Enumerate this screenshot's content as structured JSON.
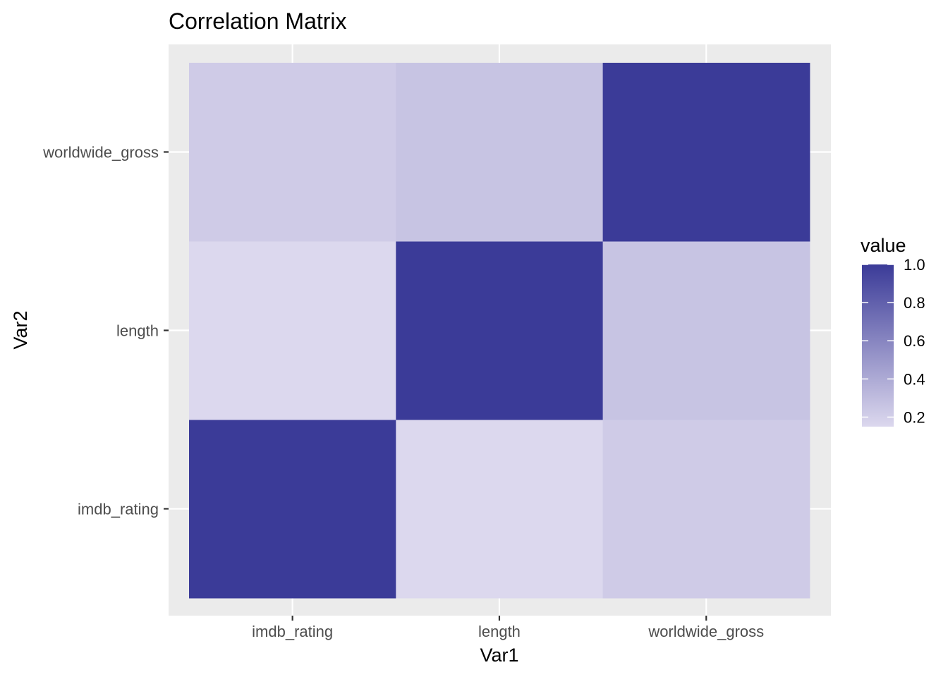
{
  "chart_data": {
    "type": "heatmap",
    "title": "Correlation Matrix",
    "xlabel": "Var1",
    "ylabel": "Var2",
    "x_categories": [
      "imdb_rating",
      "length",
      "worldwide_gross"
    ],
    "y_categories": [
      "imdb_rating",
      "length",
      "worldwide_gross"
    ],
    "values": [
      [
        1.0,
        0.15,
        0.22
      ],
      [
        0.15,
        1.0,
        0.26
      ],
      [
        0.22,
        0.26,
        1.0
      ]
    ],
    "legend": {
      "title": "value",
      "ticks": [
        0.2,
        0.4,
        0.6,
        0.8,
        1.0
      ],
      "tick_labels": [
        "0.2",
        "0.4",
        "0.6",
        "0.8",
        "1.0"
      ],
      "range": [
        0.15,
        1.0
      ],
      "placement": "right"
    },
    "color_low": "#dcd8ee",
    "color_high": "#3b3b98",
    "panel_background": "#ebebeb",
    "grid_color": "#ffffff",
    "grid": true
  }
}
